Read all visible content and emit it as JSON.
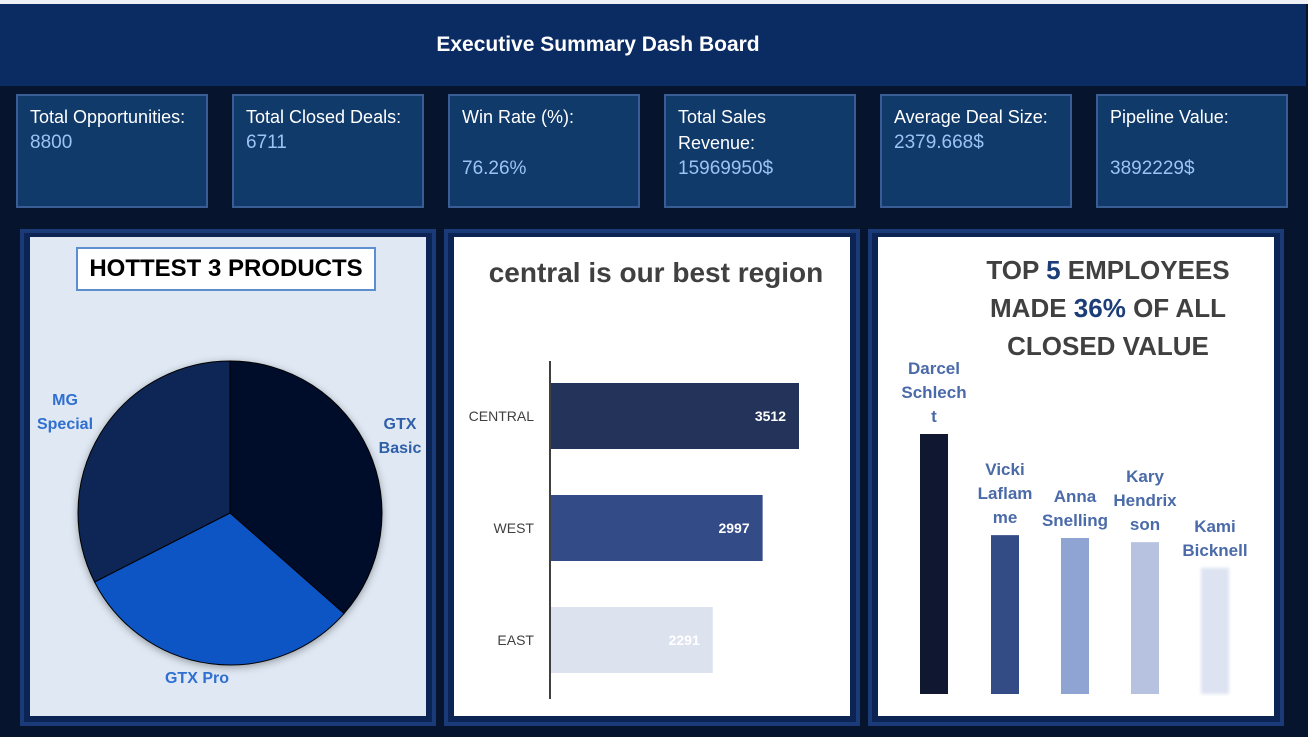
{
  "header": {
    "title": "Executive Summary Dash Board"
  },
  "kpis": [
    {
      "label": "Total Opportunities:",
      "value": "8800"
    },
    {
      "label": "Total Closed Deals:",
      "value": "6711"
    },
    {
      "label": "Win Rate (%):",
      "value": "76.26%"
    },
    {
      "label": "Total Sales Revenue:",
      "value": "15969950$"
    },
    {
      "label": "Average Deal Size:",
      "value": "2379.668$"
    },
    {
      "label": "Pipeline Value:",
      "value": "3892229$"
    }
  ],
  "chart_data": [
    {
      "type": "pie",
      "title": "HOTTEST 3 PRODUCTS",
      "slices": [
        {
          "label": "GTX Basic",
          "value": 36.5,
          "color": "#030f2a"
        },
        {
          "label": "GTX Pro",
          "value": 31.0,
          "color": "#0d55c4"
        },
        {
          "label": "MG Special",
          "value": 32.5,
          "color": "#0a2655"
        }
      ]
    },
    {
      "type": "bar",
      "orientation": "horizontal",
      "title": "central is our best region",
      "categories": [
        "CENTRAL",
        "WEST",
        "EAST"
      ],
      "values": [
        3512,
        2997,
        2291
      ],
      "colors": [
        "#24335a",
        "#334b86",
        "#dde2ef"
      ],
      "data_labels": true,
      "grid": false
    },
    {
      "type": "bar",
      "title_parts": [
        "TOP ",
        "5",
        " EMPLOYEES MADE ",
        "36%",
        " OF ALL CLOSED VALUE"
      ],
      "categories": [
        "Darcel Schlecht",
        "Vicki Laflamme",
        "Anna Snelling",
        "Kary Hendrixson",
        "Kami Bicknell"
      ],
      "values": [
        1000,
        611,
        600,
        584,
        485
      ],
      "colors": [
        "#101831",
        "#344c86",
        "#8fa4d2",
        "#b6c2e0",
        "#dde3f1"
      ],
      "grid": false
    }
  ]
}
